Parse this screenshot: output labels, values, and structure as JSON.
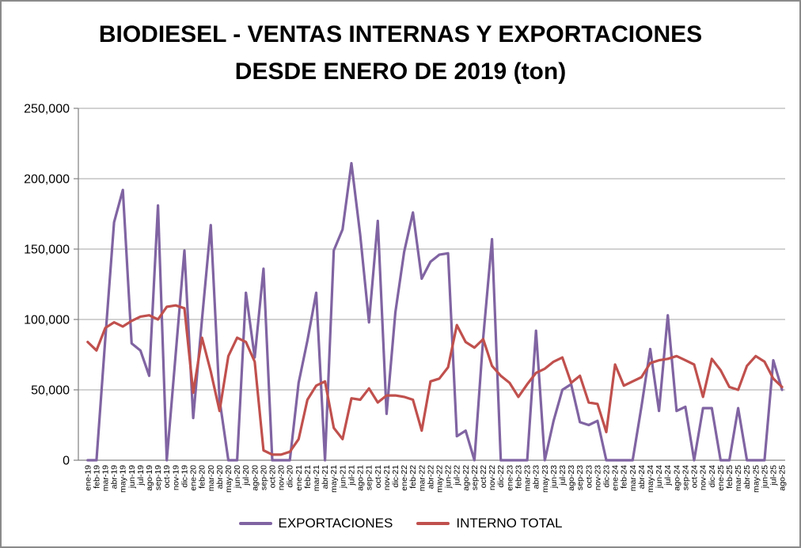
{
  "chart_data": {
    "type": "line",
    "title": "BIODIESEL - VENTAS INTERNAS Y EXPORTACIONES DESDE ENERO DE 2019 (ton)",
    "title_lines": [
      "BIODIESEL - VENTAS INTERNAS Y EXPORTACIONES",
      "DESDE ENERO DE 2019 (ton)"
    ],
    "xlabel": "",
    "ylabel": "",
    "ylim": [
      0,
      250000
    ],
    "ytick_step": 50000,
    "y_tick_labels": [
      "0",
      "50,000",
      "100,000",
      "150,000",
      "200,000",
      "250,000"
    ],
    "grid": true,
    "legend_position": "bottom",
    "categories": [
      "ene-19",
      "feb-19",
      "mar-19",
      "abr-19",
      "may-19",
      "jun-19",
      "jul-19",
      "ago-19",
      "sep-19",
      "oct-19",
      "nov-19",
      "dic-19",
      "ene-20",
      "feb-20",
      "mar-20",
      "abr-20",
      "may-20",
      "jun-20",
      "jul-20",
      "ago-20",
      "sep-20",
      "oct-20",
      "nov-20",
      "dic-20",
      "ene-21",
      "feb-21",
      "mar-21",
      "abr-21",
      "may-21",
      "jun-21",
      "jul-21",
      "ago-21",
      "sep-21",
      "oct-21",
      "nov-21",
      "dic-21",
      "ene-22",
      "feb-22",
      "mar-22",
      "abr-22",
      "may-22",
      "jun-22",
      "jul-22",
      "ago-22",
      "sep-22",
      "oct-22",
      "nov-22",
      "dic-22",
      "ene-23",
      "feb-23",
      "mar-23",
      "abr-23",
      "may-23",
      "jun-23",
      "jul-23",
      "ago-23",
      "sep-23",
      "oct-23",
      "nov-23",
      "dic-23",
      "ene-24",
      "feb-24",
      "mar-24",
      "abr-24",
      "may-24",
      "jun-24",
      "jul-24",
      "ago-24",
      "sep-24",
      "oct-24",
      "nov-24",
      "dic-24",
      "ene-25",
      "feb-25",
      "mar-25",
      "abr-25",
      "may-25",
      "jun-25",
      "jul-25",
      "ago-25"
    ],
    "series": [
      {
        "name": "EXPORTACIONES",
        "color": "#8064A2",
        "values": [
          0,
          0,
          86000,
          169000,
          192000,
          83000,
          78000,
          60000,
          181000,
          0,
          75000,
          149000,
          30000,
          100000,
          167000,
          43000,
          0,
          0,
          119000,
          73000,
          136000,
          0,
          0,
          0,
          55000,
          85000,
          119000,
          0,
          149000,
          164000,
          211000,
          160000,
          98000,
          170000,
          33000,
          105000,
          148000,
          176000,
          129000,
          141000,
          146000,
          147000,
          17000,
          21000,
          0,
          87000,
          157000,
          0,
          0,
          0,
          0,
          92000,
          0,
          28000,
          50000,
          54000,
          27000,
          25000,
          28000,
          0,
          0,
          0,
          0,
          38000,
          79000,
          35000,
          103000,
          35000,
          38000,
          0,
          37000,
          37000,
          0,
          0,
          37000,
          0,
          0,
          0,
          71000,
          50000
        ]
      },
      {
        "name": "INTERNO TOTAL",
        "color": "#C0504D",
        "values": [
          84000,
          78000,
          94000,
          98000,
          95000,
          99000,
          102000,
          103000,
          100000,
          109000,
          110000,
          108000,
          48000,
          87000,
          63000,
          35000,
          74000,
          87000,
          84000,
          70000,
          7000,
          4000,
          4000,
          6000,
          15000,
          43000,
          53000,
          56000,
          23000,
          15000,
          44000,
          43000,
          51000,
          41000,
          46000,
          46000,
          45000,
          43000,
          21000,
          56000,
          58000,
          66000,
          96000,
          84000,
          80000,
          86000,
          67000,
          60000,
          55000,
          45000,
          54000,
          62000,
          65000,
          70000,
          73000,
          55000,
          60000,
          41000,
          40000,
          20000,
          68000,
          53000,
          56000,
          59000,
          69000,
          71000,
          72000,
          74000,
          71000,
          68000,
          45000,
          72000,
          64000,
          52000,
          50000,
          67000,
          74000,
          70000,
          58000,
          52000
        ]
      }
    ]
  },
  "colors": {
    "gridline": "#A6A6A6",
    "axis": "#808080",
    "text": "#000000",
    "frame_border": "#8A8A8A"
  }
}
